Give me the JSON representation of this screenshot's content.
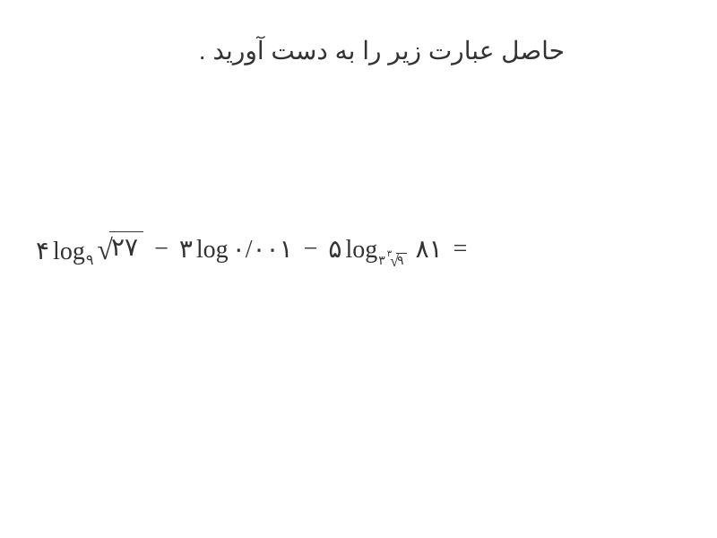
{
  "heading": "حاصل عبارت زیر را به دست آورید .",
  "equation": {
    "term1": {
      "coef": "۴",
      "log": "log",
      "sub": "۹",
      "sqrt_body": "۲۷"
    },
    "op1": "−",
    "term2": {
      "coef": "۳",
      "log": "log",
      "arg": "۰/۰۰۱"
    },
    "op2": "−",
    "term3": {
      "coef": "۵",
      "log": "log",
      "sub_pre": "۳",
      "sub_rootidx": "۳",
      "sub_sqrt_body": "۹",
      "arg": "۸۱"
    },
    "equals": "="
  },
  "colors": {
    "text": "#333333",
    "background": "#ffffff"
  },
  "fontsize": {
    "heading": 28,
    "equation": 28,
    "subscript": 16
  }
}
